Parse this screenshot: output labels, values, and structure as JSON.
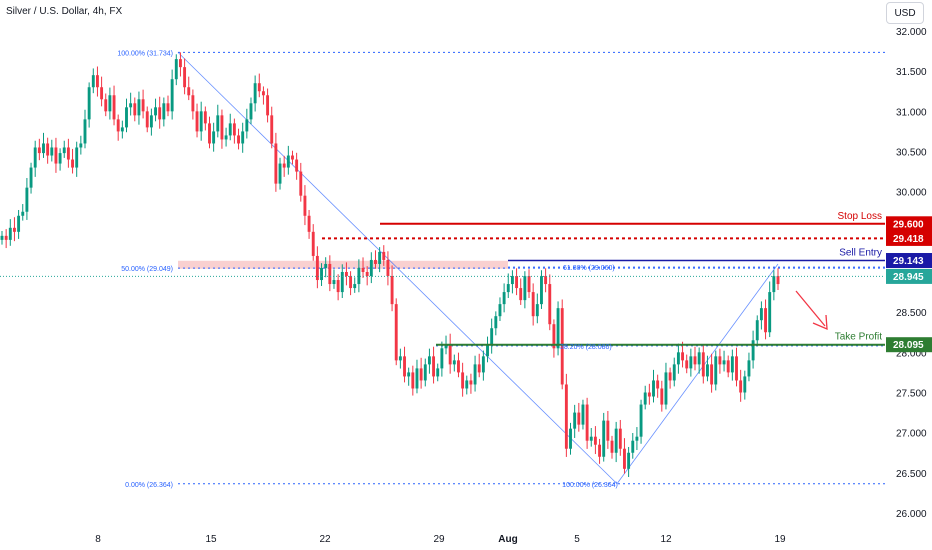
{
  "header": {
    "title": "Silver / U.S. Dollar, 4h, FX",
    "currency": "USD"
  },
  "colors": {
    "up": "#089981",
    "down": "#f23645",
    "fib": "#2962ff",
    "stop": "#d50000",
    "entry": "#1a1aa6",
    "profit": "#2e7d32",
    "zone": "#f8c8c8",
    "arrow": "#f23645",
    "current": "#26a69a"
  },
  "chart_data": {
    "type": "candlestick",
    "symbol": "Silver / U.S. Dollar, 4h, FX",
    "x_ticks": [
      "8",
      "15",
      "22",
      "29",
      "Aug",
      "5",
      "12",
      "19"
    ],
    "y_ticks": [
      "32.000",
      "31.500",
      "31.000",
      "30.500",
      "30.000",
      "29.500",
      "29.000",
      "28.500",
      "28.000",
      "27.500",
      "27.000",
      "26.500",
      "26.000"
    ],
    "ylim": [
      25.95,
      32.05
    ],
    "closes": [
      29.45,
      29.4,
      29.55,
      29.5,
      29.7,
      29.75,
      30.05,
      30.3,
      30.55,
      30.48,
      30.6,
      30.45,
      30.55,
      30.35,
      30.48,
      30.55,
      30.4,
      30.3,
      30.55,
      30.6,
      30.9,
      31.3,
      31.45,
      31.3,
      31.15,
      31.0,
      31.2,
      30.9,
      30.75,
      30.8,
      31.05,
      31.1,
      30.95,
      31.15,
      31.0,
      30.8,
      30.95,
      31.05,
      30.9,
      31.1,
      31.0,
      31.4,
      31.65,
      31.55,
      31.3,
      31.2,
      31.0,
      30.75,
      31.0,
      30.85,
      30.6,
      30.75,
      30.95,
      30.65,
      30.7,
      30.85,
      30.7,
      30.6,
      30.75,
      30.9,
      31.1,
      31.35,
      31.25,
      31.2,
      30.95,
      30.6,
      30.1,
      30.35,
      30.3,
      30.45,
      30.4,
      30.25,
      29.95,
      29.7,
      29.5,
      29.2,
      28.9,
      29.05,
      29.1,
      28.85,
      28.9,
      28.75,
      29.0,
      28.95,
      28.8,
      28.85,
      29.05,
      29.0,
      28.95,
      29.15,
      29.1,
      29.25,
      29.15,
      28.95,
      28.6,
      27.9,
      27.95,
      27.7,
      27.75,
      27.55,
      27.8,
      27.65,
      27.85,
      27.95,
      27.7,
      27.8,
      28.05,
      28.1,
      27.85,
      27.9,
      27.75,
      27.55,
      27.65,
      27.6,
      27.85,
      27.75,
      27.95,
      28.1,
      28.3,
      28.45,
      28.6,
      28.75,
      28.85,
      28.95,
      28.8,
      28.65,
      28.95,
      28.75,
      28.45,
      28.6,
      28.95,
      28.85,
      28.35,
      28.05,
      28.55,
      27.6,
      26.8,
      27.05,
      27.25,
      27.1,
      27.35,
      26.9,
      26.95,
      26.85,
      26.7,
      27.15,
      26.9,
      26.75,
      27.05,
      26.8,
      26.55,
      26.75,
      26.9,
      26.95,
      27.35,
      27.5,
      27.45,
      27.65,
      27.55,
      27.35,
      27.75,
      27.65,
      27.85,
      28.0,
      27.9,
      27.8,
      27.95,
      27.85,
      28.0,
      27.7,
      27.85,
      27.6,
      27.95,
      27.85,
      27.9,
      27.75,
      27.95,
      27.65,
      27.5,
      27.7,
      27.9,
      28.15,
      28.4,
      28.55,
      28.25,
      28.75,
      28.95,
      28.85
    ]
  },
  "levels": {
    "stop_loss": {
      "label": "Stop Loss",
      "price": 29.6,
      "price_label": "29.600"
    },
    "dotted": {
      "price": 29.418,
      "price_label": "29.418"
    },
    "sell_entry": {
      "label": "Sell Entry",
      "price": 29.143,
      "price_label": "29.143"
    },
    "current": {
      "price": 28.945,
      "price_label": "28.945"
    },
    "take_profit": {
      "label": "Take Profit",
      "price": 28.095,
      "price_label": "28.095"
    }
  },
  "fib_labels": {
    "top": "100.00% (31.734)",
    "mid": "50.00% (29.049)",
    "bottom": "0.00% (26.364)",
    "ext_bottom": "100.00% (26.364)",
    "ext_618": "61.80% (29.060)",
    "ext_382": "38.20% (28.080)"
  },
  "fib_values": {
    "top": 31.734,
    "mid": 29.049,
    "bottom": 26.364,
    "ext_618": 29.06,
    "ext_382": 28.08
  }
}
